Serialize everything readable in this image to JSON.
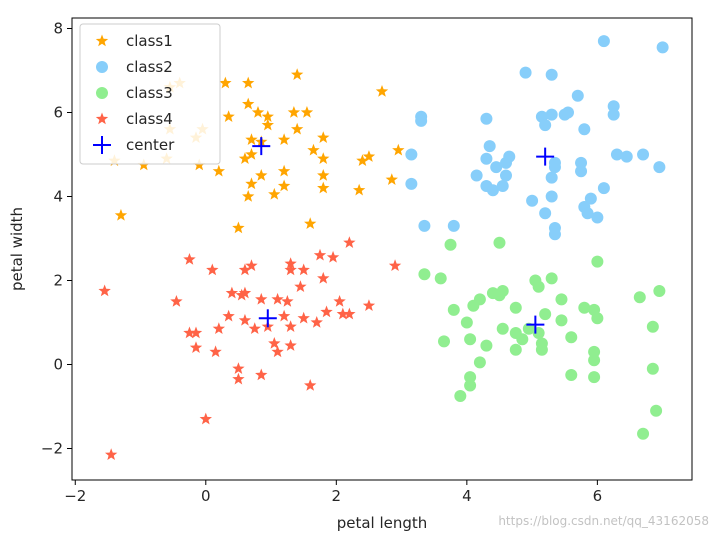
{
  "chart_data": {
    "type": "scatter",
    "xlabel": "petal length",
    "ylabel": "petal width",
    "xlim": [
      -2.05,
      7.45
    ],
    "ylim": [
      -2.75,
      8.25
    ],
    "xticks": [
      -2,
      0,
      2,
      4,
      6
    ],
    "yticks": [
      -2,
      0,
      2,
      4,
      6,
      8
    ],
    "legend_position": "top-left",
    "series": [
      {
        "name": "class1",
        "marker": "star",
        "color": "#FFA500",
        "points": [
          [
            -0.55,
            6.6
          ],
          [
            -0.4,
            6.7
          ],
          [
            -0.05,
            5.6
          ],
          [
            0.3,
            6.7
          ],
          [
            0.65,
            6.7
          ],
          [
            1.4,
            6.9
          ],
          [
            2.7,
            6.5
          ],
          [
            -0.55,
            5.6
          ],
          [
            -0.15,
            5.4
          ],
          [
            0.35,
            5.9
          ],
          [
            0.65,
            6.2
          ],
          [
            0.8,
            6.0
          ],
          [
            0.95,
            5.9
          ],
          [
            0.95,
            5.7
          ],
          [
            1.35,
            6.0
          ],
          [
            1.55,
            6.0
          ],
          [
            1.4,
            5.6
          ],
          [
            1.8,
            5.4
          ],
          [
            1.2,
            5.35
          ],
          [
            0.85,
            5.3
          ],
          [
            0.7,
            5.35
          ],
          [
            1.65,
            5.1
          ],
          [
            2.95,
            5.1
          ],
          [
            -1.4,
            4.85
          ],
          [
            -0.95,
            4.75
          ],
          [
            -0.1,
            4.75
          ],
          [
            0.2,
            4.6
          ],
          [
            0.6,
            4.9
          ],
          [
            0.7,
            5.0
          ],
          [
            0.85,
            4.5
          ],
          [
            1.2,
            4.6
          ],
          [
            1.8,
            4.9
          ],
          [
            2.4,
            4.85
          ],
          [
            2.5,
            4.95
          ],
          [
            0.7,
            4.3
          ],
          [
            1.2,
            4.25
          ],
          [
            1.8,
            4.2
          ],
          [
            2.35,
            4.15
          ],
          [
            2.85,
            4.4
          ],
          [
            1.8,
            4.5
          ],
          [
            0.65,
            4.0
          ],
          [
            1.05,
            4.05
          ],
          [
            -1.3,
            3.55
          ],
          [
            1.6,
            3.35
          ],
          [
            0.5,
            3.25
          ],
          [
            -0.6,
            4.9
          ]
        ]
      },
      {
        "name": "class2",
        "marker": "circle",
        "color": "#87CEFA",
        "points": [
          [
            6.1,
            7.7
          ],
          [
            7.0,
            7.55
          ],
          [
            4.9,
            6.95
          ],
          [
            5.3,
            6.9
          ],
          [
            5.7,
            6.4
          ],
          [
            6.25,
            6.15
          ],
          [
            6.25,
            5.95
          ],
          [
            5.15,
            5.9
          ],
          [
            5.3,
            5.95
          ],
          [
            5.5,
            5.95
          ],
          [
            5.8,
            5.6
          ],
          [
            5.55,
            6.0
          ],
          [
            3.3,
            5.9
          ],
          [
            3.3,
            5.8
          ],
          [
            4.3,
            5.85
          ],
          [
            5.2,
            5.7
          ],
          [
            3.15,
            5.0
          ],
          [
            4.35,
            5.2
          ],
          [
            4.3,
            4.9
          ],
          [
            4.45,
            4.7
          ],
          [
            4.6,
            4.8
          ],
          [
            4.65,
            4.95
          ],
          [
            5.35,
            4.8
          ],
          [
            5.35,
            4.7
          ],
          [
            5.75,
            4.8
          ],
          [
            5.75,
            4.6
          ],
          [
            6.3,
            5.0
          ],
          [
            6.45,
            4.95
          ],
          [
            6.7,
            5.0
          ],
          [
            6.95,
            4.7
          ],
          [
            4.15,
            4.5
          ],
          [
            4.6,
            4.5
          ],
          [
            5.3,
            4.45
          ],
          [
            4.3,
            4.25
          ],
          [
            4.4,
            4.15
          ],
          [
            4.55,
            4.25
          ],
          [
            6.1,
            4.2
          ],
          [
            3.15,
            4.3
          ],
          [
            5.3,
            4.0
          ],
          [
            5.0,
            3.9
          ],
          [
            5.2,
            3.6
          ],
          [
            5.9,
            3.95
          ],
          [
            5.8,
            3.75
          ],
          [
            5.85,
            3.6
          ],
          [
            6.0,
            3.5
          ],
          [
            3.35,
            3.3
          ],
          [
            3.8,
            3.3
          ],
          [
            5.35,
            3.25
          ],
          [
            5.35,
            3.1
          ]
        ]
      },
      {
        "name": "class3",
        "marker": "circle",
        "color": "#90EE90",
        "points": [
          [
            3.75,
            2.85
          ],
          [
            4.5,
            2.9
          ],
          [
            3.35,
            2.15
          ],
          [
            3.6,
            2.05
          ],
          [
            5.3,
            2.05
          ],
          [
            5.05,
            2.0
          ],
          [
            6.0,
            2.45
          ],
          [
            5.1,
            1.85
          ],
          [
            4.4,
            1.7
          ],
          [
            4.55,
            1.75
          ],
          [
            4.2,
            1.55
          ],
          [
            4.5,
            1.65
          ],
          [
            5.45,
            1.55
          ],
          [
            5.8,
            1.35
          ],
          [
            6.65,
            1.6
          ],
          [
            6.95,
            1.75
          ],
          [
            3.8,
            1.3
          ],
          [
            4.1,
            1.4
          ],
          [
            4.0,
            1.0
          ],
          [
            4.75,
            1.35
          ],
          [
            5.95,
            1.3
          ],
          [
            6.0,
            1.1
          ],
          [
            5.2,
            1.2
          ],
          [
            5.45,
            1.05
          ],
          [
            3.65,
            0.55
          ],
          [
            4.05,
            0.6
          ],
          [
            4.3,
            0.45
          ],
          [
            4.55,
            0.85
          ],
          [
            4.75,
            0.75
          ],
          [
            4.85,
            0.6
          ],
          [
            4.95,
            0.85
          ],
          [
            5.1,
            0.75
          ],
          [
            5.15,
            0.5
          ],
          [
            5.6,
            0.65
          ],
          [
            4.75,
            0.35
          ],
          [
            5.15,
            0.35
          ],
          [
            5.95,
            0.3
          ],
          [
            5.95,
            0.1
          ],
          [
            6.85,
            0.9
          ],
          [
            4.2,
            0.05
          ],
          [
            6.85,
            -0.1
          ],
          [
            5.6,
            -0.25
          ],
          [
            5.95,
            -0.3
          ],
          [
            4.05,
            -0.3
          ],
          [
            4.05,
            -0.5
          ],
          [
            3.9,
            -0.75
          ],
          [
            6.9,
            -1.1
          ],
          [
            6.7,
            -1.65
          ]
        ]
      },
      {
        "name": "class4",
        "marker": "star",
        "color": "#FF6347",
        "points": [
          [
            -0.25,
            2.5
          ],
          [
            0.1,
            2.25
          ],
          [
            0.6,
            2.25
          ],
          [
            0.7,
            2.35
          ],
          [
            1.3,
            2.4
          ],
          [
            1.3,
            2.25
          ],
          [
            1.75,
            2.6
          ],
          [
            1.95,
            2.55
          ],
          [
            2.2,
            2.9
          ],
          [
            2.9,
            2.35
          ],
          [
            1.5,
            2.25
          ],
          [
            1.8,
            2.05
          ],
          [
            0.4,
            1.7
          ],
          [
            0.55,
            1.65
          ],
          [
            0.6,
            1.7
          ],
          [
            0.85,
            1.55
          ],
          [
            1.1,
            1.55
          ],
          [
            1.25,
            1.5
          ],
          [
            1.45,
            1.85
          ],
          [
            -1.55,
            1.75
          ],
          [
            -0.45,
            1.5
          ],
          [
            2.05,
            1.5
          ],
          [
            2.1,
            1.2
          ],
          [
            2.5,
            1.4
          ],
          [
            -0.25,
            0.75
          ],
          [
            -0.15,
            0.75
          ],
          [
            0.35,
            1.15
          ],
          [
            0.6,
            1.05
          ],
          [
            0.75,
            0.85
          ],
          [
            0.95,
            0.9
          ],
          [
            1.2,
            1.15
          ],
          [
            1.3,
            0.9
          ],
          [
            1.5,
            1.1
          ],
          [
            1.7,
            1.0
          ],
          [
            1.85,
            1.25
          ],
          [
            2.2,
            1.2
          ],
          [
            0.2,
            0.85
          ],
          [
            -0.15,
            0.4
          ],
          [
            0.15,
            0.3
          ],
          [
            1.05,
            0.5
          ],
          [
            1.1,
            0.3
          ],
          [
            1.3,
            0.45
          ],
          [
            0.5,
            -0.1
          ],
          [
            0.5,
            -0.35
          ],
          [
            0.85,
            -0.25
          ],
          [
            1.6,
            -0.5
          ],
          [
            0.0,
            -1.3
          ],
          [
            -1.45,
            -2.15
          ]
        ]
      }
    ],
    "centers": {
      "name": "center",
      "marker": "plus",
      "color": "#0000FF",
      "points": [
        [
          0.85,
          5.2
        ],
        [
          5.2,
          4.95
        ],
        [
          5.05,
          0.95
        ],
        [
          0.95,
          1.1
        ]
      ]
    }
  },
  "watermark": "https://blog.csdn.net/qq_43162058"
}
